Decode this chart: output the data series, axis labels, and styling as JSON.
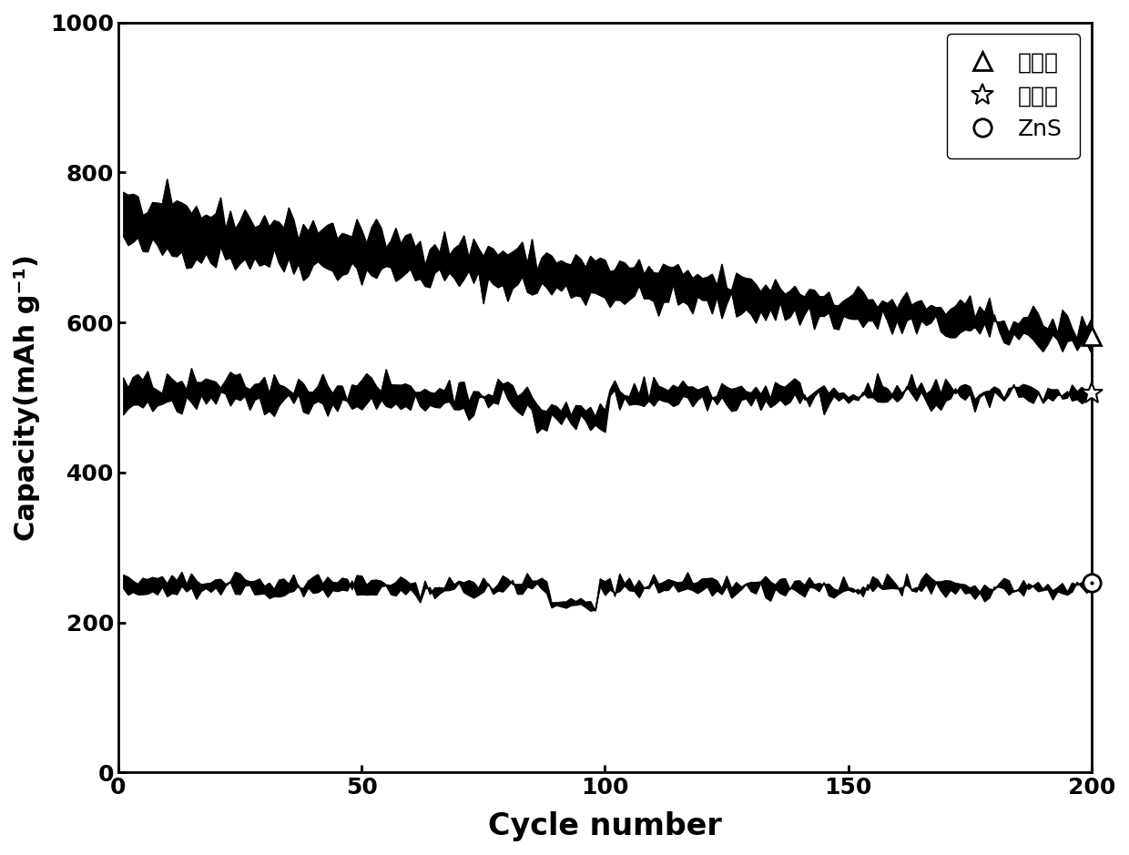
{
  "title": "",
  "xlabel": "Cycle number",
  "ylabel": "Capacity(mAh g⁻¹)",
  "xlim": [
    0,
    200
  ],
  "ylim": [
    0,
    1000
  ],
  "xticks": [
    0,
    50,
    100,
    150,
    200
  ],
  "yticks": [
    0,
    200,
    400,
    600,
    800,
    1000
  ],
  "legend_labels": [
    "纳米硫",
    "升华硫",
    "ZnS"
  ],
  "background_color": "#ffffff",
  "line_color": "#000000",
  "font_size_ticks": 18,
  "font_size_labels": 22,
  "font_size_legend": 18
}
